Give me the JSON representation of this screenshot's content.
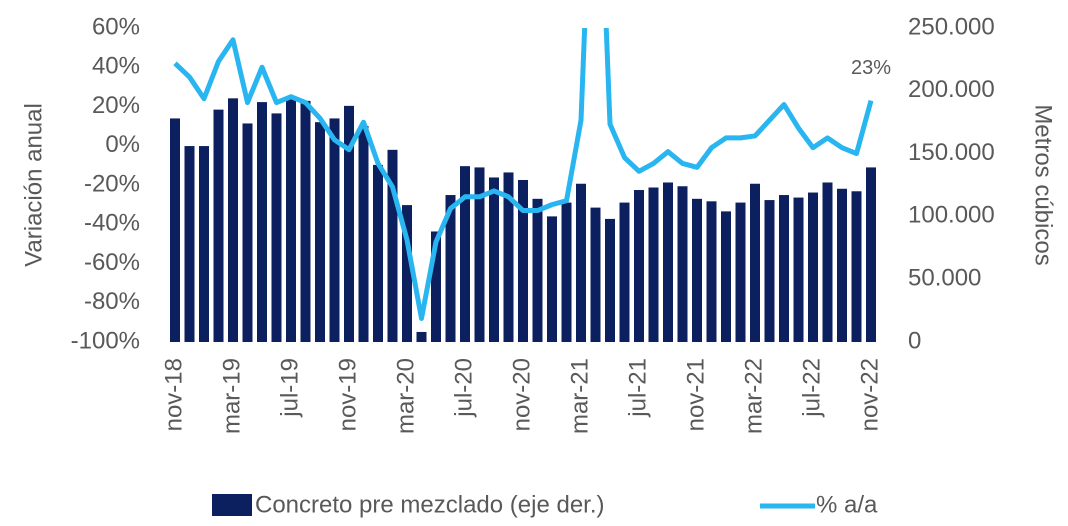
{
  "chart_data": {
    "type": "bar_line",
    "y_label": "Variación anual",
    "y2_label": "Metros cúbicos",
    "categories": [
      "nov-18",
      null,
      null,
      null,
      "mar-19",
      null,
      null,
      null,
      "jul-19",
      null,
      null,
      null,
      "nov-19",
      null,
      null,
      null,
      "mar-20",
      null,
      null,
      null,
      "jul-20",
      null,
      null,
      null,
      "nov-20",
      null,
      null,
      null,
      "mar-21",
      null,
      null,
      null,
      "jul-21",
      null,
      null,
      null,
      "nov-21",
      null,
      null,
      null,
      "mar-22",
      null,
      null,
      null,
      "jul-22",
      null,
      null,
      null,
      "nov-22"
    ],
    "series": [
      {
        "name": "Concreto pre mezclado (eje der.)",
        "type": "bar",
        "axis": "y2",
        "color": "#0c1f5e",
        "values": [
          178000,
          156000,
          156000,
          185000,
          194000,
          174000,
          191000,
          182000,
          194000,
          192000,
          175000,
          178000,
          188000,
          172000,
          141000,
          153000,
          109000,
          8000,
          88000,
          117000,
          140000,
          139000,
          131000,
          135000,
          129000,
          114000,
          100000,
          111000,
          126000,
          107000,
          98000,
          111000,
          121000,
          123000,
          127000,
          124000,
          114000,
          112000,
          104000,
          111000,
          126000,
          113000,
          117000,
          115000,
          119000,
          127000,
          122000,
          120000,
          139000
        ]
      },
      {
        "name": "% a/a",
        "type": "line",
        "axis": "y",
        "color": "#29b6f0",
        "values": [
          42,
          35,
          24,
          43,
          54,
          22,
          40,
          22,
          25,
          22,
          14,
          3,
          -2,
          12,
          -9,
          -21,
          -48,
          -88,
          -49,
          -32,
          -26,
          -26,
          -23,
          -26,
          -33,
          -33,
          -30,
          -28,
          13,
          200,
          11,
          -6,
          -13,
          -9,
          -3,
          -9,
          -11,
          -1,
          4,
          4,
          5,
          13,
          21,
          9,
          -1,
          4,
          -1,
          -4,
          23
        ],
        "value_labels": [
          null,
          null,
          null,
          null,
          null,
          null,
          null,
          null,
          null,
          null,
          null,
          null,
          null,
          null,
          null,
          null,
          null,
          null,
          null,
          null,
          null,
          null,
          null,
          null,
          null,
          null,
          null,
          null,
          null,
          null,
          null,
          null,
          null,
          null,
          null,
          null,
          null,
          null,
          null,
          null,
          null,
          null,
          null,
          null,
          null,
          null,
          null,
          null,
          "23%"
        ]
      }
    ],
    "ylim": [
      -100,
      60
    ],
    "yticks": [
      {
        "value": -100,
        "label": "-100%"
      },
      {
        "value": -80,
        "label": "-80%"
      },
      {
        "value": -60,
        "label": "-60%"
      },
      {
        "value": -40,
        "label": "-40%"
      },
      {
        "value": -20,
        "label": "-20%"
      },
      {
        "value": 0,
        "label": "0%"
      },
      {
        "value": 20,
        "label": "20%"
      },
      {
        "value": 40,
        "label": "40%"
      },
      {
        "value": 60,
        "label": "60%"
      }
    ],
    "y2lim": [
      0,
      250000
    ],
    "y2ticks": [
      0,
      {
        "value": 50000,
        "label": "50.000"
      },
      {
        "value": 100000,
        "label": "100.000"
      },
      {
        "value": 150000,
        "label": "150.000"
      },
      {
        "value": 200000,
        "label": "200.000"
      },
      {
        "value": 250000,
        "label": "250.000"
      }
    ],
    "legend": "bottom"
  }
}
